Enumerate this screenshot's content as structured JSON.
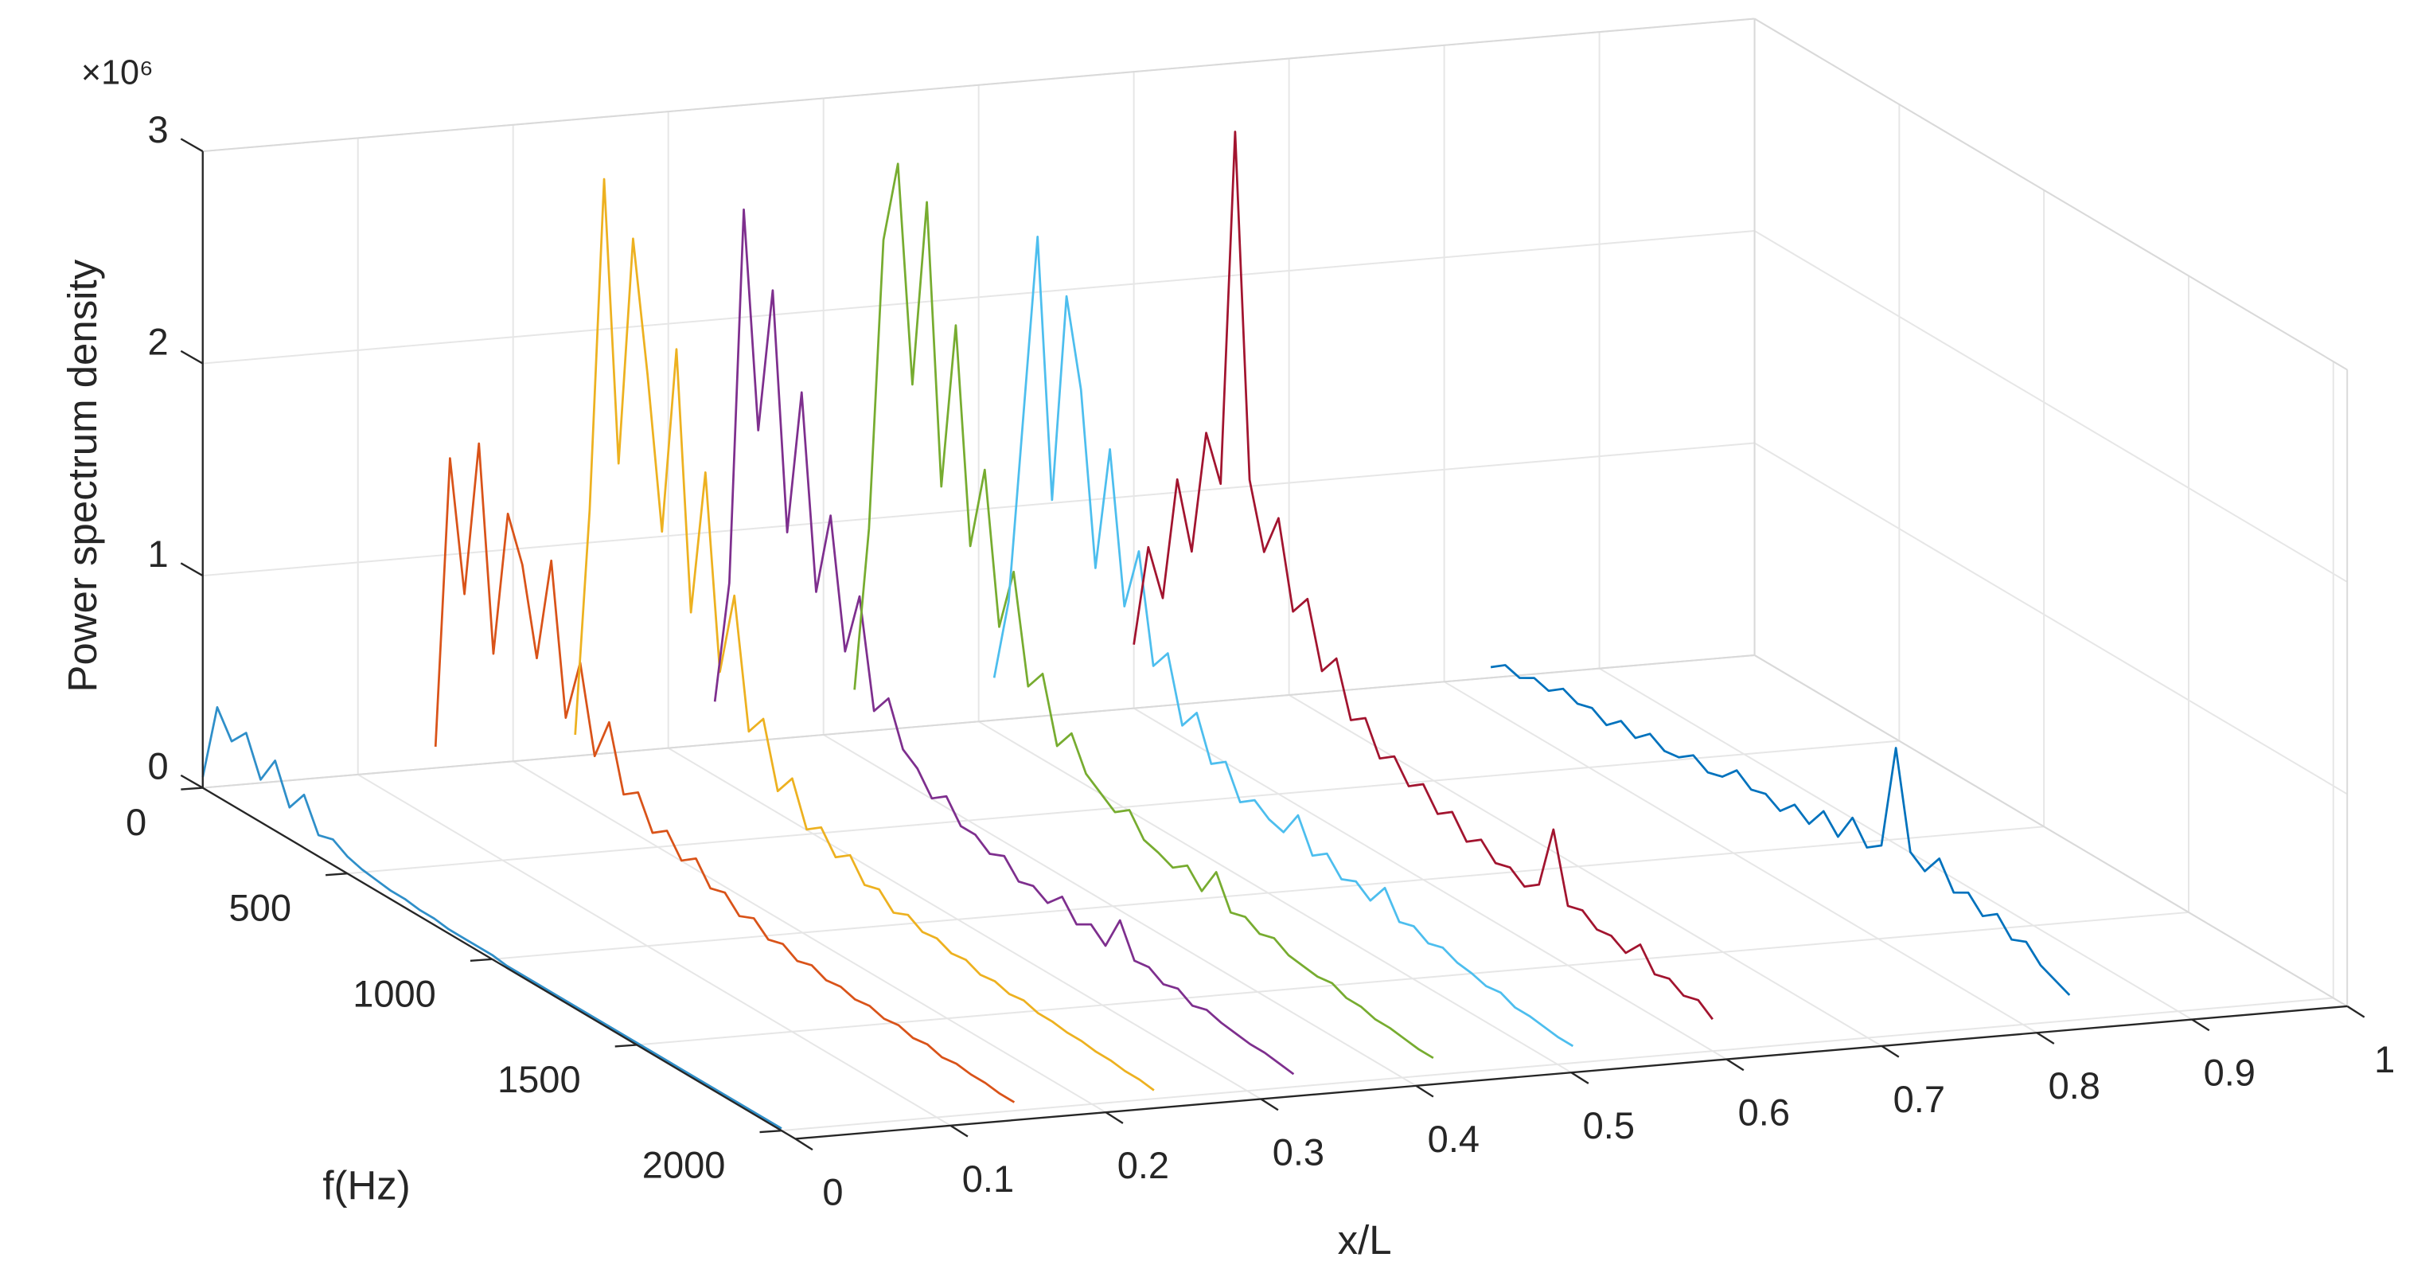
{
  "chart_data": {
    "type": "waterfall3d",
    "exponent_label": "×10⁶",
    "zlabel": "Power spectrum density",
    "flabel": "f(Hz)",
    "xlabel": "x/L",
    "xlim": [
      0,
      1
    ],
    "xticks": [
      0,
      0.1,
      0.2,
      0.3,
      0.4,
      0.5,
      0.6,
      0.7,
      0.8,
      0.9,
      1
    ],
    "flim": [
      0,
      2048
    ],
    "fticks": [
      0,
      500,
      1000,
      1500,
      2000
    ],
    "zlim": [
      0,
      3
    ],
    "zticks": [
      0,
      1,
      2,
      3
    ],
    "grid": true,
    "f": [
      0,
      50,
      100,
      150,
      200,
      250,
      300,
      350,
      400,
      450,
      500,
      550,
      600,
      650,
      700,
      750,
      800,
      850,
      900,
      950,
      1000,
      1050,
      1100,
      1150,
      1200,
      1250,
      1300,
      1350,
      1400,
      1450,
      1500,
      1550,
      1600,
      1650,
      1700,
      1750,
      1800,
      1850,
      1900,
      1950,
      2000
    ],
    "series": [
      {
        "x_position": 0,
        "color": "#2f8fc9",
        "values": [
          0.05,
          0.42,
          0.3,
          0.38,
          0.2,
          0.33,
          0.15,
          0.25,
          0.1,
          0.12,
          0.08,
          0.06,
          0.05,
          0.04,
          0.04,
          0.03,
          0.03,
          0.02,
          0.02,
          0.02,
          0.02,
          0.01,
          0.01,
          0.01,
          0.01,
          0.01,
          0.01,
          0.01,
          0.01,
          0.01,
          0.01,
          0.01,
          0.01,
          0.01,
          0.01,
          0.01,
          0.01,
          0.01,
          0.01,
          0.01,
          0.01
        ]
      },
      {
        "x_position": 0.15,
        "color": "#D95319",
        "values": [
          0.1,
          1.5,
          0.9,
          1.65,
          0.7,
          1.4,
          1.2,
          0.8,
          1.3,
          0.6,
          0.9,
          0.5,
          0.7,
          0.4,
          0.45,
          0.3,
          0.35,
          0.25,
          0.3,
          0.2,
          0.22,
          0.15,
          0.18,
          0.12,
          0.14,
          0.1,
          0.12,
          0.09,
          0.1,
          0.08,
          0.09,
          0.07,
          0.08,
          0.06,
          0.07,
          0.05,
          0.06,
          0.05,
          0.05,
          0.04,
          0.04
        ]
      },
      {
        "x_position": 0.24,
        "color": "#EDB120",
        "values": [
          0.1,
          1.2,
          2.8,
          1.5,
          2.6,
          2.0,
          1.3,
          2.2,
          1.0,
          1.7,
          0.8,
          1.2,
          0.6,
          0.7,
          0.4,
          0.5,
          0.3,
          0.35,
          0.25,
          0.3,
          0.2,
          0.22,
          0.15,
          0.18,
          0.14,
          0.15,
          0.12,
          0.13,
          0.1,
          0.11,
          0.09,
          0.1,
          0.08,
          0.08,
          0.07,
          0.07,
          0.06,
          0.06,
          0.05,
          0.05,
          0.04
        ]
      },
      {
        "x_position": 0.33,
        "color": "#7E2F8E",
        "values": [
          0.2,
          0.8,
          2.6,
          1.6,
          2.3,
          1.2,
          1.9,
          1.0,
          1.4,
          0.8,
          1.1,
          0.6,
          0.7,
          0.5,
          0.45,
          0.35,
          0.4,
          0.3,
          0.3,
          0.25,
          0.28,
          0.2,
          0.22,
          0.18,
          0.25,
          0.16,
          0.2,
          0.14,
          0.3,
          0.15,
          0.16,
          0.12,
          0.14,
          0.1,
          0.12,
          0.1,
          0.09,
          0.08,
          0.08,
          0.07,
          0.06
        ]
      },
      {
        "x_position": 0.42,
        "color": "#77AC30",
        "values": [
          0.2,
          1.0,
          2.4,
          2.8,
          1.8,
          2.7,
          1.4,
          2.2,
          1.2,
          1.6,
          0.9,
          1.2,
          0.7,
          0.8,
          0.5,
          0.6,
          0.45,
          0.4,
          0.35,
          0.4,
          0.3,
          0.28,
          0.25,
          0.3,
          0.22,
          0.35,
          0.2,
          0.22,
          0.18,
          0.2,
          0.16,
          0.15,
          0.14,
          0.15,
          0.12,
          0.12,
          0.1,
          0.1,
          0.09,
          0.08,
          0.08
        ]
      },
      {
        "x_position": 0.51,
        "color": "#4DBEEE",
        "values": [
          0.2,
          0.6,
          1.5,
          2.4,
          1.2,
          2.2,
          1.8,
          1.0,
          1.6,
          0.9,
          1.2,
          0.7,
          0.8,
          0.5,
          0.6,
          0.4,
          0.45,
          0.3,
          0.35,
          0.3,
          0.28,
          0.4,
          0.25,
          0.3,
          0.22,
          0.25,
          0.2,
          0.3,
          0.18,
          0.2,
          0.16,
          0.18,
          0.15,
          0.14,
          0.12,
          0.13,
          0.1,
          0.1,
          0.09,
          0.08,
          0.08
        ]
      },
      {
        "x_position": 0.6,
        "color": "#A2142F",
        "values": [
          0.3,
          0.8,
          0.6,
          1.2,
          0.9,
          1.5,
          1.3,
          3.0,
          1.4,
          1.1,
          1.3,
          0.9,
          1.0,
          0.7,
          0.8,
          0.55,
          0.6,
          0.45,
          0.5,
          0.4,
          0.45,
          0.35,
          0.4,
          0.3,
          0.35,
          0.28,
          0.3,
          0.25,
          0.3,
          0.6,
          0.28,
          0.3,
          0.25,
          0.26,
          0.22,
          0.3,
          0.2,
          0.22,
          0.18,
          0.2,
          0.15
        ]
      },
      {
        "x_position": 0.83,
        "color": "#0072BD",
        "values": [
          0.05,
          0.1,
          0.08,
          0.12,
          0.1,
          0.15,
          0.12,
          0.14,
          0.1,
          0.16,
          0.12,
          0.18,
          0.14,
          0.15,
          0.2,
          0.16,
          0.18,
          0.25,
          0.2,
          0.22,
          0.18,
          0.25,
          0.2,
          0.3,
          0.22,
          0.35,
          0.25,
          0.3,
          0.8,
          0.35,
          0.3,
          0.4,
          0.28,
          0.32,
          0.25,
          0.3,
          0.22,
          0.25,
          0.18,
          0.15,
          0.12
        ]
      }
    ]
  }
}
